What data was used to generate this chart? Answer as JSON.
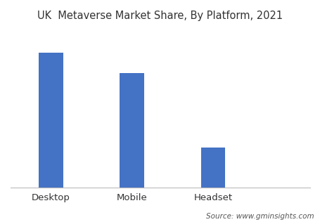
{
  "title": "UK  Metaverse Market Share, By Platform, 2021",
  "categories": [
    "Desktop",
    "Mobile",
    "Headset"
  ],
  "values": [
    85,
    72,
    25
  ],
  "bar_color": "#4472c4",
  "bar_width": 0.3,
  "background_color": "#ffffff",
  "source_text": "Source: www.gminsights.com",
  "title_fontsize": 10.5,
  "label_fontsize": 9.5,
  "source_fontsize": 7.5,
  "ylim": [
    0,
    100
  ],
  "x_positions": [
    0,
    1,
    2
  ],
  "xlim": [
    -0.5,
    3.2
  ]
}
